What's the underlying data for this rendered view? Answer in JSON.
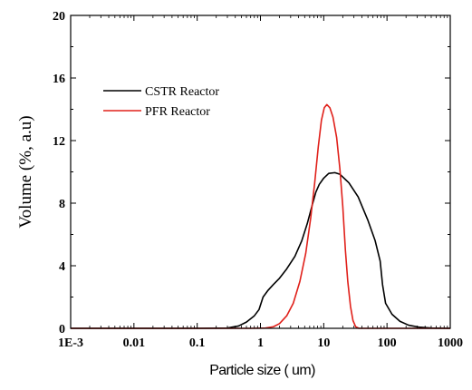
{
  "chart_data": {
    "type": "line",
    "title": "",
    "xlabel": "Particle size ( um)",
    "ylabel": "Volume (%, a.u)",
    "xscale": "log",
    "xlim": [
      0.001,
      1000
    ],
    "ylim": [
      0,
      20
    ],
    "x_ticks": [
      0.001,
      0.01,
      0.1,
      1,
      10,
      100,
      1000
    ],
    "x_tick_labels": [
      "1E-3",
      "0.01",
      "0.1",
      "1",
      "10",
      "100",
      "1000"
    ],
    "y_ticks": [
      0,
      4,
      8,
      12,
      16,
      20
    ],
    "y_tick_labels": [
      "0",
      "4",
      "8",
      "12",
      "16",
      "20"
    ],
    "grid": false,
    "legend_position": "upper-left",
    "series": [
      {
        "name": "CSTR Reactor",
        "color": "#000000",
        "points": [
          [
            0.001,
            0
          ],
          [
            0.1,
            0
          ],
          [
            0.3,
            0.02
          ],
          [
            0.45,
            0.15
          ],
          [
            0.6,
            0.4
          ],
          [
            0.8,
            0.8
          ],
          [
            0.95,
            1.2
          ],
          [
            1.1,
            2.0
          ],
          [
            1.3,
            2.4
          ],
          [
            1.6,
            2.8
          ],
          [
            2.0,
            3.2
          ],
          [
            2.6,
            3.8
          ],
          [
            3.5,
            4.6
          ],
          [
            4.5,
            5.6
          ],
          [
            5.5,
            6.7
          ],
          [
            6.5,
            7.8
          ],
          [
            7.5,
            8.7
          ],
          [
            8.5,
            9.2
          ],
          [
            10,
            9.6
          ],
          [
            12,
            9.9
          ],
          [
            15,
            9.95
          ],
          [
            18,
            9.85
          ],
          [
            25,
            9.3
          ],
          [
            35,
            8.4
          ],
          [
            50,
            6.9
          ],
          [
            65,
            5.6
          ],
          [
            78,
            4.3
          ],
          [
            85,
            2.8
          ],
          [
            95,
            1.6
          ],
          [
            120,
            0.9
          ],
          [
            160,
            0.45
          ],
          [
            220,
            0.2
          ],
          [
            320,
            0.08
          ],
          [
            500,
            0.02
          ],
          [
            1000,
            0
          ]
        ]
      },
      {
        "name": "PFR Reactor",
        "color": "#e0201a",
        "points": [
          [
            0.001,
            0
          ],
          [
            0.7,
            0
          ],
          [
            1.2,
            0.02
          ],
          [
            1.6,
            0.1
          ],
          [
            2.0,
            0.3
          ],
          [
            2.6,
            0.8
          ],
          [
            3.3,
            1.6
          ],
          [
            4.2,
            3.0
          ],
          [
            5.2,
            4.8
          ],
          [
            6.2,
            7.0
          ],
          [
            7.2,
            9.3
          ],
          [
            8.2,
            11.6
          ],
          [
            9.2,
            13.3
          ],
          [
            10.2,
            14.1
          ],
          [
            11.2,
            14.3
          ],
          [
            12.5,
            14.1
          ],
          [
            14,
            13.5
          ],
          [
            16,
            12.2
          ],
          [
            18,
            10.2
          ],
          [
            20,
            7.8
          ],
          [
            22,
            5.0
          ],
          [
            24,
            3.0
          ],
          [
            26.5,
            1.4
          ],
          [
            29,
            0.5
          ],
          [
            32,
            0.1
          ],
          [
            36,
            0
          ],
          [
            1000,
            0
          ]
        ]
      }
    ]
  }
}
